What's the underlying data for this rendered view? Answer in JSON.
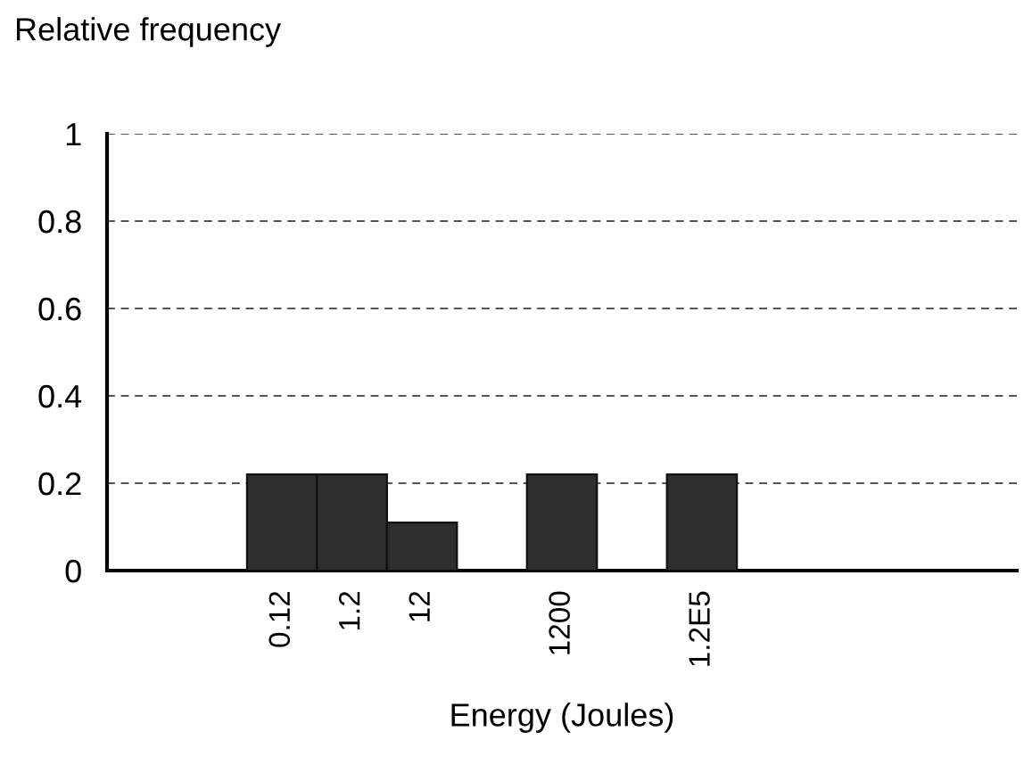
{
  "chart_data": {
    "type": "bar",
    "ylabel": "Relative frequency",
    "xlabel": "Energy (Joules)",
    "categories": [
      null,
      null,
      "0.12",
      "1.2",
      "12",
      null,
      "1200",
      null,
      "1.2E5",
      null,
      null,
      null,
      null
    ],
    "values": [
      null,
      null,
      0.22,
      0.22,
      0.11,
      null,
      0.22,
      null,
      0.22,
      null,
      null,
      null,
      null
    ],
    "color": "#2e2e2e",
    "ylim": [
      0,
      1
    ],
    "yticks": [
      0,
      {
        "value": 0.2,
        "label": "0.2"
      },
      {
        "value": 0.4,
        "label": "0.4"
      },
      {
        "value": 0.6,
        "label": "0.6"
      },
      {
        "value": 0.8,
        "label": "0.8"
      },
      1
    ],
    "grid": "y",
    "line_style": "dashed"
  }
}
